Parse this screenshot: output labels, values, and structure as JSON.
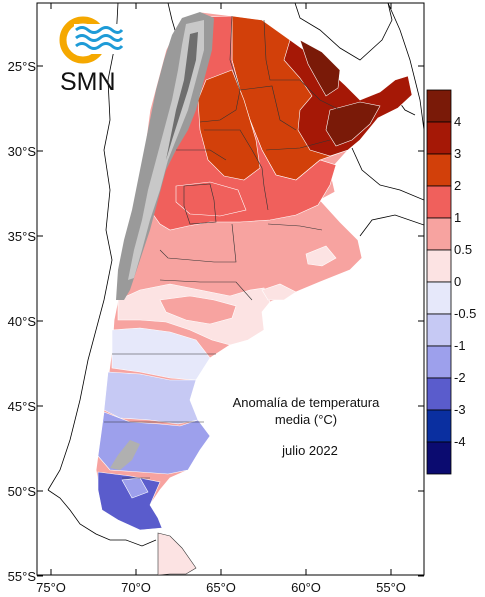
{
  "logo": {
    "text": "SMN",
    "brand_color": "#F5A800",
    "wave_color": "#1E9BD7"
  },
  "map": {
    "lat_labels": [
      "25°S",
      "30°S",
      "35°S",
      "40°S",
      "45°S",
      "50°S",
      "55°S"
    ],
    "lon_labels": [
      "75°O",
      "70°O",
      "65°O",
      "60°O",
      "55°O"
    ]
  },
  "legend": {
    "title_line1": "Anomalía de temperatura",
    "title_line2": "media (°C)",
    "period": "julio 2022",
    "classes": [
      {
        "label": "4",
        "color": "#7A1A08"
      },
      {
        "label": "3",
        "color": "#A51806"
      },
      {
        "label": "2",
        "color": "#D2400A"
      },
      {
        "label": "1",
        "color": "#F0605C"
      },
      {
        "label": "0.5",
        "color": "#F7A3A0"
      },
      {
        "label": "0",
        "color": "#FCE3E3"
      },
      {
        "label": "-0.5",
        "color": "#E6E8FA"
      },
      {
        "label": "-1",
        "color": "#C6C9F4"
      },
      {
        "label": "-2",
        "color": "#9DA0EC"
      },
      {
        "label": "-3",
        "color": "#5A5CCC"
      },
      {
        "label": "-4",
        "color": "#0A2FA0"
      },
      {
        "label": "",
        "color": "#0B0B70"
      }
    ]
  }
}
